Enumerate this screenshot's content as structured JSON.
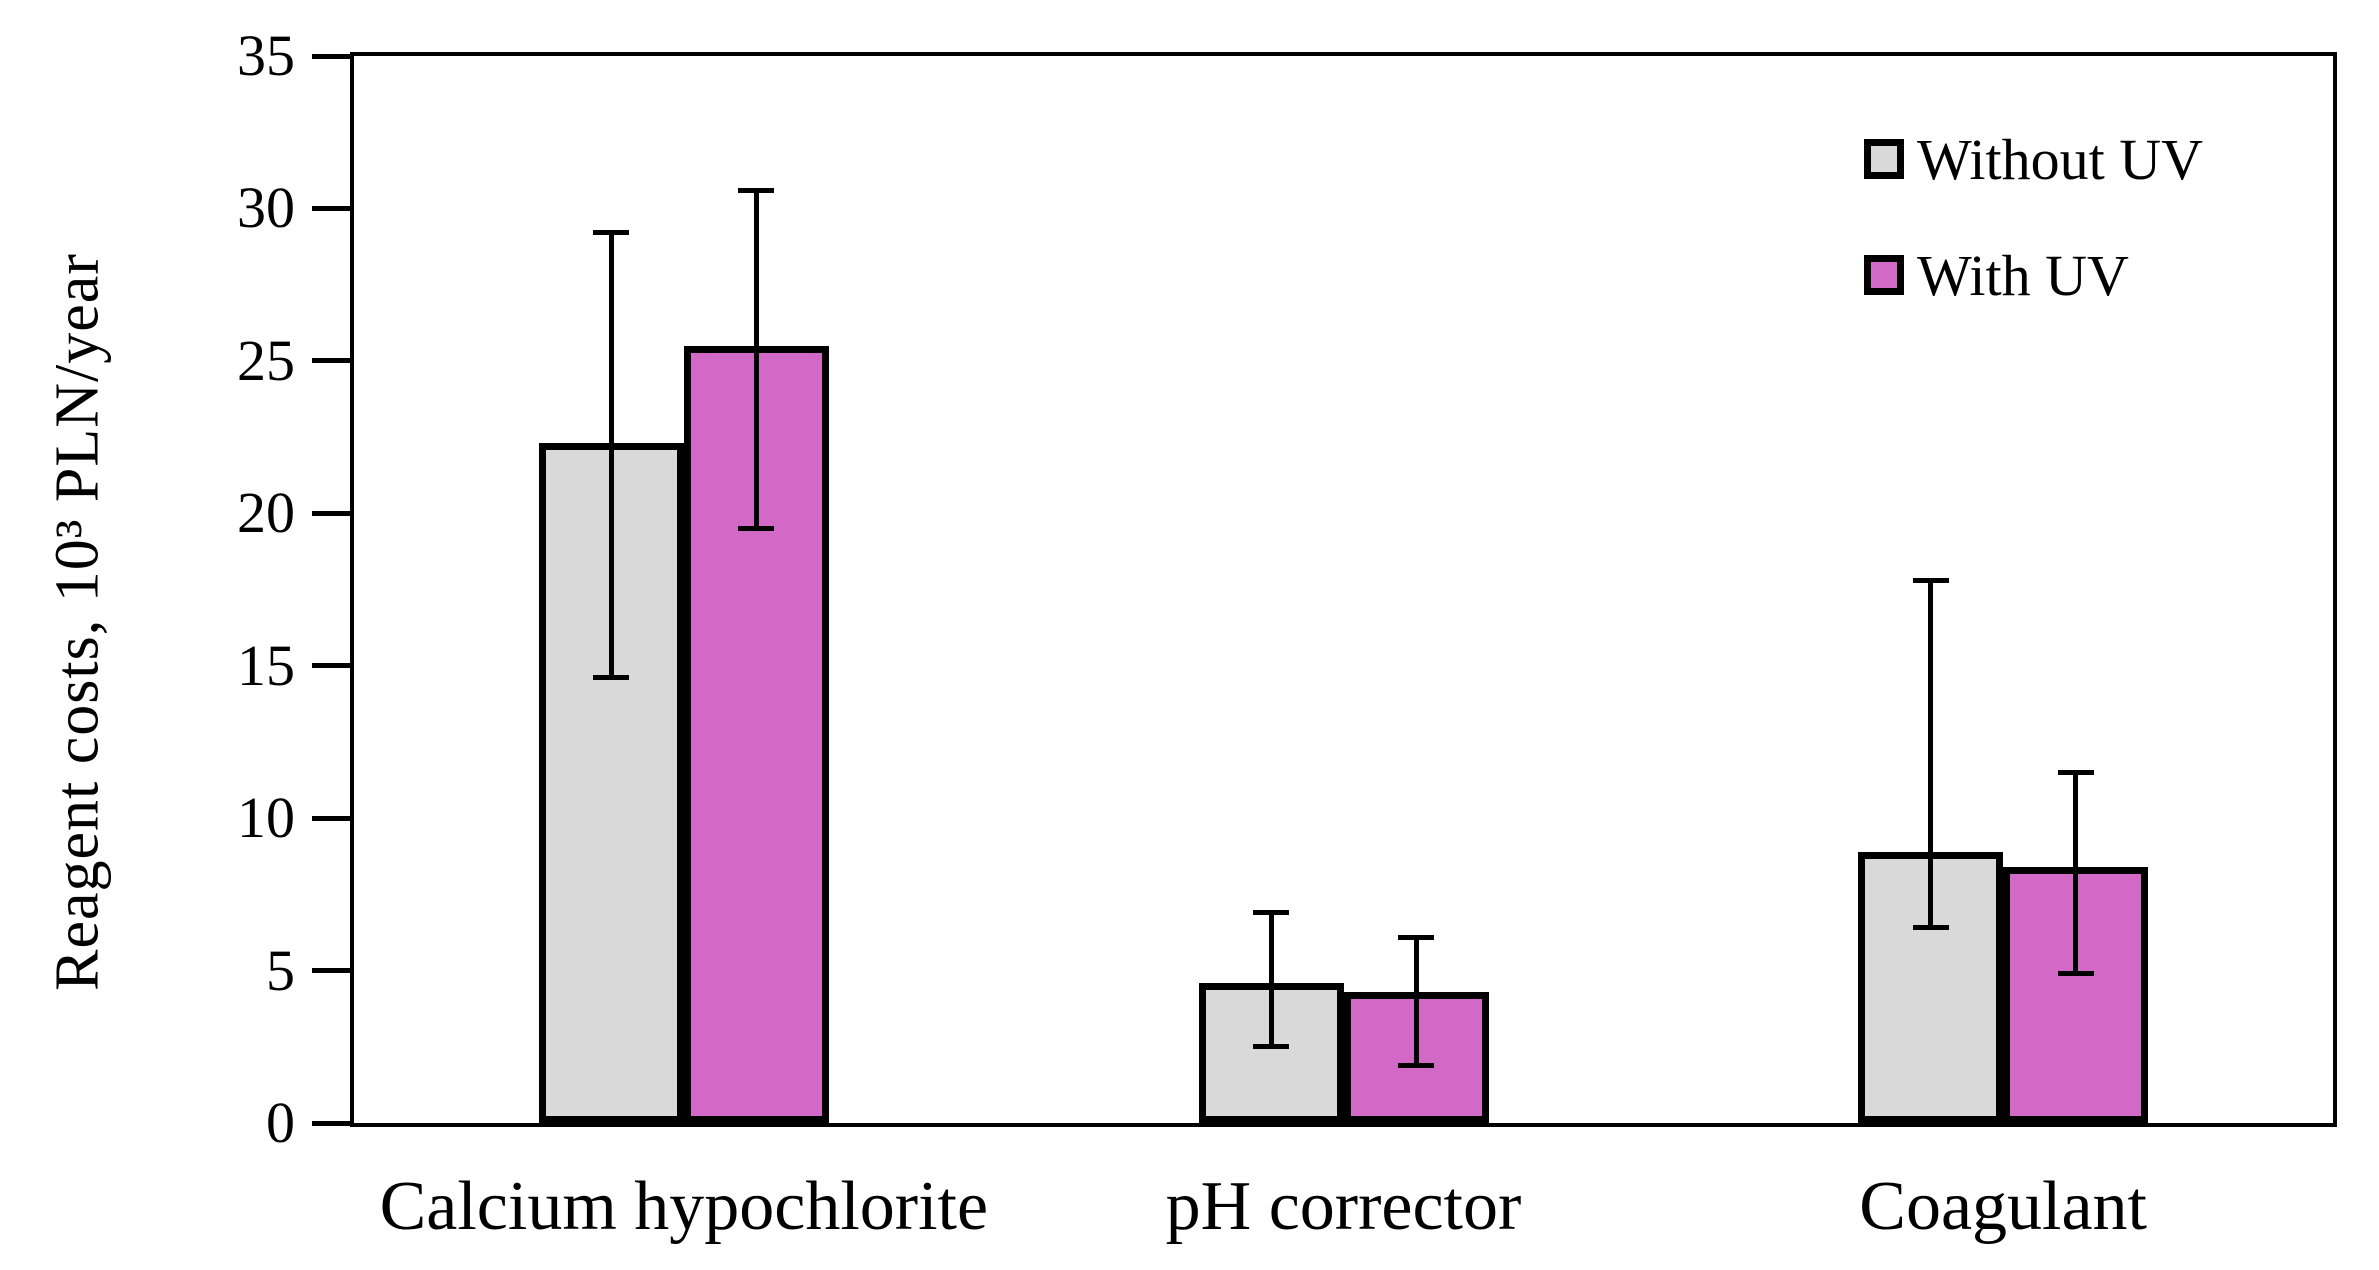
{
  "figure": {
    "background": "#ffffff",
    "y_axis": {
      "label": "Reagent costs, 10³ PLN/year",
      "ticks": [
        0,
        5,
        10,
        15,
        20,
        25,
        30,
        35
      ],
      "min": 0,
      "max": 35
    },
    "frame_color": "#000000"
  },
  "chart_data": {
    "type": "bar",
    "title": "",
    "xlabel": "",
    "ylabel": "Reagent costs, 10³ PLN/year",
    "ylim": [
      0,
      35
    ],
    "grid": false,
    "legend_position": "top-right-inside",
    "categories": [
      "Calcium hypochlorite",
      "pH corrector",
      "Coagulant"
    ],
    "series": [
      {
        "name": "Without UV",
        "color": "#D9D9D9",
        "values": [
          22.3,
          4.6,
          8.9
        ],
        "error_low": [
          14.6,
          2.5,
          6.4
        ],
        "error_high": [
          29.2,
          6.9,
          17.8
        ]
      },
      {
        "name": "With UV",
        "color": "#D369C6",
        "values": [
          25.5,
          4.3,
          8.4
        ],
        "error_low": [
          19.5,
          1.9,
          4.9
        ],
        "error_high": [
          30.6,
          6.1,
          11.5
        ]
      }
    ]
  }
}
